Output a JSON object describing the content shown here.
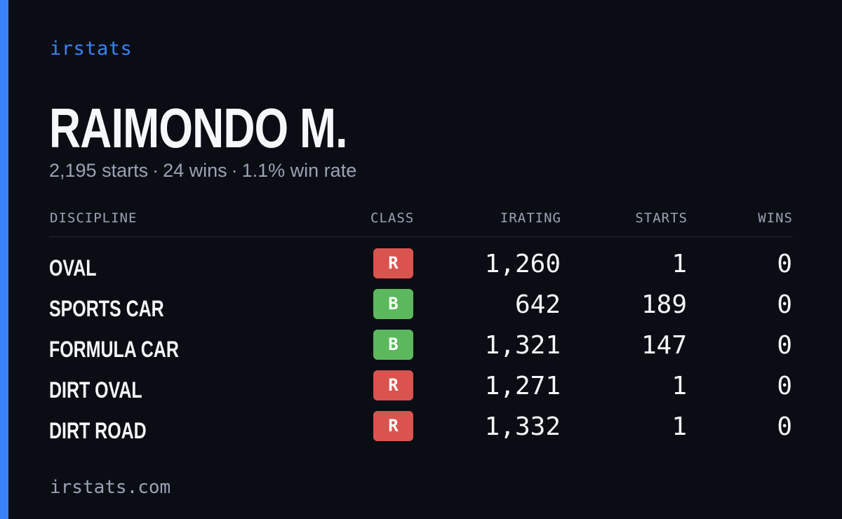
{
  "brand": "irstats",
  "driver": {
    "name": "RAIMONDO M.",
    "starts_text": "2,195 starts",
    "wins_text": "24 wins",
    "win_rate_text": "1.1% win rate",
    "separator": "·"
  },
  "table": {
    "headers": {
      "discipline": "DISCIPLINE",
      "class": "CLASS",
      "irating": "IRATING",
      "starts": "STARTS",
      "wins": "WINS"
    },
    "rows": [
      {
        "discipline": "OVAL",
        "class": "R",
        "class_color": "#d9534f",
        "irating": "1,260",
        "starts": "1",
        "wins": "0"
      },
      {
        "discipline": "SPORTS CAR",
        "class": "B",
        "class_color": "#5cb85c",
        "irating": "642",
        "starts": "189",
        "wins": "0"
      },
      {
        "discipline": "FORMULA CAR",
        "class": "B",
        "class_color": "#5cb85c",
        "irating": "1,321",
        "starts": "147",
        "wins": "0"
      },
      {
        "discipline": "DIRT OVAL",
        "class": "R",
        "class_color": "#d9534f",
        "irating": "1,271",
        "starts": "1",
        "wins": "0"
      },
      {
        "discipline": "DIRT ROAD",
        "class": "R",
        "class_color": "#d9534f",
        "irating": "1,332",
        "starts": "1",
        "wins": "0"
      }
    ]
  },
  "footer": "irstats.com",
  "colors": {
    "accent": "#3b82f6",
    "background": "#0b0d14",
    "class_r": "#d9534f",
    "class_b": "#5cb85c"
  }
}
